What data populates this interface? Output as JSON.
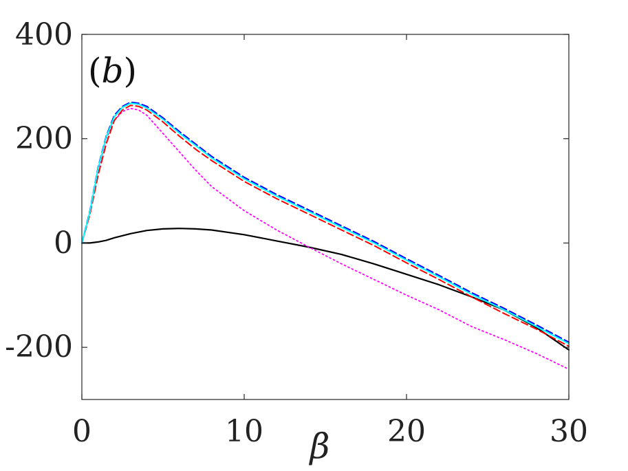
{
  "chart_data": {
    "type": "line",
    "panel_label": {
      "open": "(",
      "letter": "b",
      "close": ")"
    },
    "xlabel": "β",
    "ylabel": "",
    "xlim": [
      0,
      30
    ],
    "ylim": [
      -300,
      400
    ],
    "xticks": [
      0,
      10,
      20,
      30
    ],
    "yticks": [
      -200,
      0,
      200,
      400
    ],
    "xtick_labels": [
      "0",
      "10",
      "20",
      "30"
    ],
    "ytick_labels": [
      "-200",
      "0",
      "200",
      "400"
    ],
    "grid": false,
    "legend": "none",
    "series": [
      {
        "color": "#000000",
        "style": "solid",
        "x": [
          0,
          0.5,
          1,
          1.5,
          2,
          3,
          4,
          5,
          6,
          7,
          8,
          10,
          12,
          14,
          16,
          18,
          20,
          22,
          24,
          26,
          28,
          30
        ],
        "y": [
          0,
          0,
          2,
          5,
          10,
          18,
          24,
          27,
          28,
          27,
          25,
          16,
          4,
          -8,
          -22,
          -40,
          -60,
          -80,
          -103,
          -128,
          -162,
          -205
        ]
      },
      {
        "color": "#ff00ff",
        "style": "dotted",
        "x": [
          0,
          0.5,
          1,
          1.5,
          2,
          2.5,
          3,
          3.5,
          4,
          5,
          6,
          7,
          8,
          10,
          12,
          14,
          16,
          18,
          20,
          22,
          24,
          26,
          28,
          30
        ],
        "y": [
          0,
          60,
          140,
          200,
          235,
          252,
          258,
          255,
          245,
          210,
          175,
          140,
          108,
          62,
          25,
          -8,
          -40,
          -70,
          -100,
          -128,
          -160,
          -185,
          -212,
          -242
        ]
      },
      {
        "color": "#ff0000",
        "style": "dashed",
        "x": [
          0,
          0.5,
          1,
          1.5,
          2,
          2.5,
          3,
          3.5,
          4,
          5,
          6,
          7,
          8,
          10,
          12,
          14,
          16,
          18,
          20,
          22,
          24,
          26,
          28,
          30
        ],
        "y": [
          0,
          55,
          130,
          190,
          235,
          255,
          264,
          262,
          255,
          232,
          205,
          180,
          158,
          118,
          85,
          55,
          25,
          -5,
          -38,
          -70,
          -103,
          -135,
          -165,
          -198
        ]
      },
      {
        "color": "#0000ff",
        "style": "dashed",
        "x": [
          0,
          0.5,
          1,
          1.5,
          2,
          2.5,
          3,
          3.5,
          4,
          5,
          6,
          7,
          8,
          10,
          12,
          14,
          16,
          18,
          20,
          22,
          24,
          26,
          28,
          30
        ],
        "y": [
          0,
          62,
          145,
          205,
          245,
          262,
          270,
          268,
          262,
          240,
          214,
          190,
          166,
          126,
          93,
          63,
          33,
          3,
          -30,
          -62,
          -95,
          -125,
          -157,
          -190
        ]
      },
      {
        "color": "#00ffff",
        "style": "solid",
        "x": [
          0,
          0.5,
          1,
          1.5,
          2,
          2.5,
          3,
          3.5,
          4,
          5,
          6,
          7,
          8,
          10,
          12,
          14,
          16,
          18,
          20,
          22,
          24,
          26,
          28,
          30
        ],
        "y": [
          0,
          60,
          143,
          203,
          242,
          260,
          268,
          266,
          259,
          237,
          211,
          187,
          163,
          123,
          90,
          60,
          30,
          0,
          -33,
          -65,
          -98,
          -128,
          -160,
          -193
        ]
      }
    ]
  }
}
